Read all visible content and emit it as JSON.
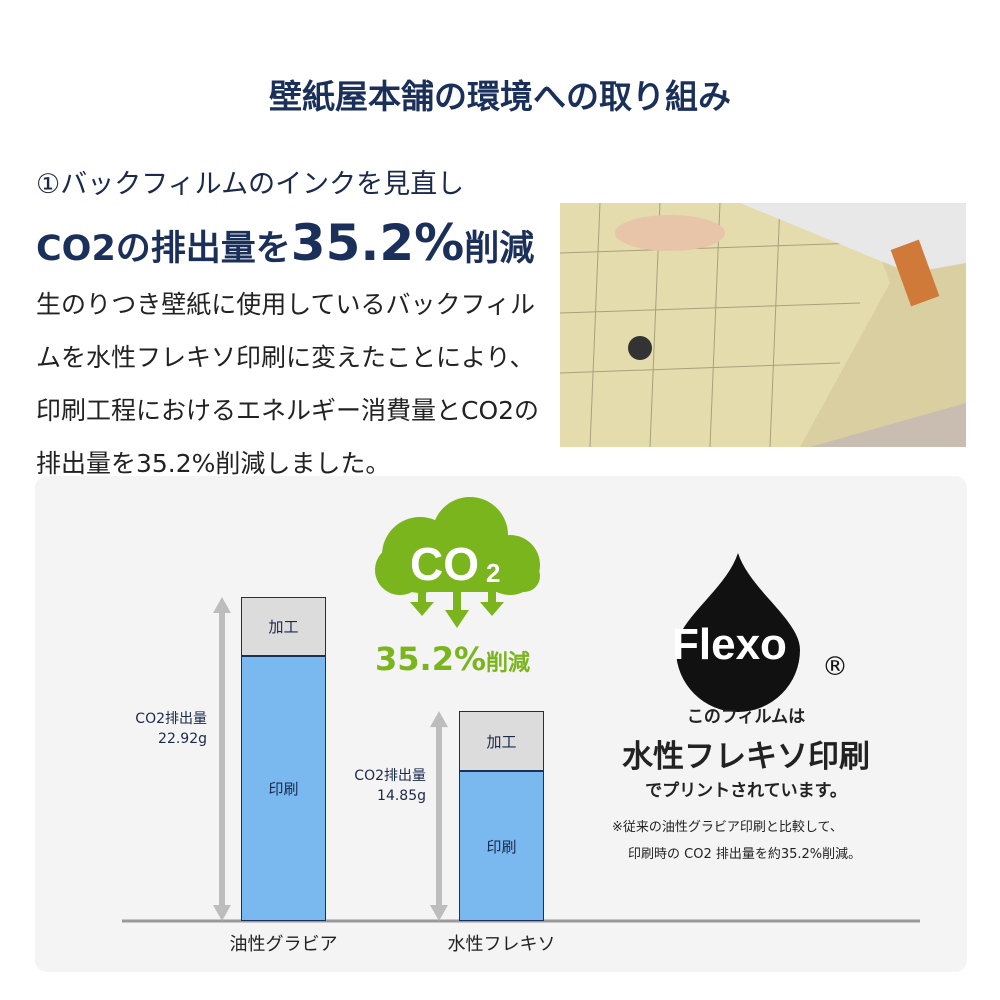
{
  "header": {
    "title": "壁紙屋本舗の環境への取り組み"
  },
  "section": {
    "subtitle": "①バックフィルムのインクを見直し",
    "headline_pre": "CO2の排出量を",
    "headline_value": "35.2%",
    "headline_post": "削減",
    "body": "生のりつき壁紙に使用しているバックフィルムを水性フレキソ印刷に変えたことにより、印刷工程におけるエネルギー消費量とCO2の排出量を35.2%削減しました。"
  },
  "badge": {
    "cloud_text": "CO",
    "cloud_sub": "2",
    "reduction": "35.2%",
    "reduction_suffix": "削減",
    "color": "#7ab51d"
  },
  "flexo": {
    "logo": "Flexo",
    "registered": "®",
    "line1": "このフィルムは",
    "line2": "水性フレキソ印刷",
    "line3": "でプリントされています。",
    "note1": "※従来の油性グラビア印刷と比較して、",
    "note2": "印刷時の CO2 排出量を約35.2%削減。"
  },
  "chart_data": {
    "type": "bar",
    "stacked": true,
    "categories": [
      "油性グラビア",
      "水性フレキソ"
    ],
    "series": [
      {
        "name": "印刷",
        "values": [
          18.7,
          10.6
        ],
        "color": "#7ab8f0"
      },
      {
        "name": "加工",
        "values": [
          4.2,
          4.25
        ],
        "color": "#dcdcdc"
      }
    ],
    "totals": [
      22.92,
      14.85
    ],
    "total_labels": [
      [
        "CO2排出量",
        "22.92g"
      ],
      [
        "CO2排出量",
        "14.85g"
      ]
    ],
    "ylim": [
      0,
      22.92
    ]
  }
}
